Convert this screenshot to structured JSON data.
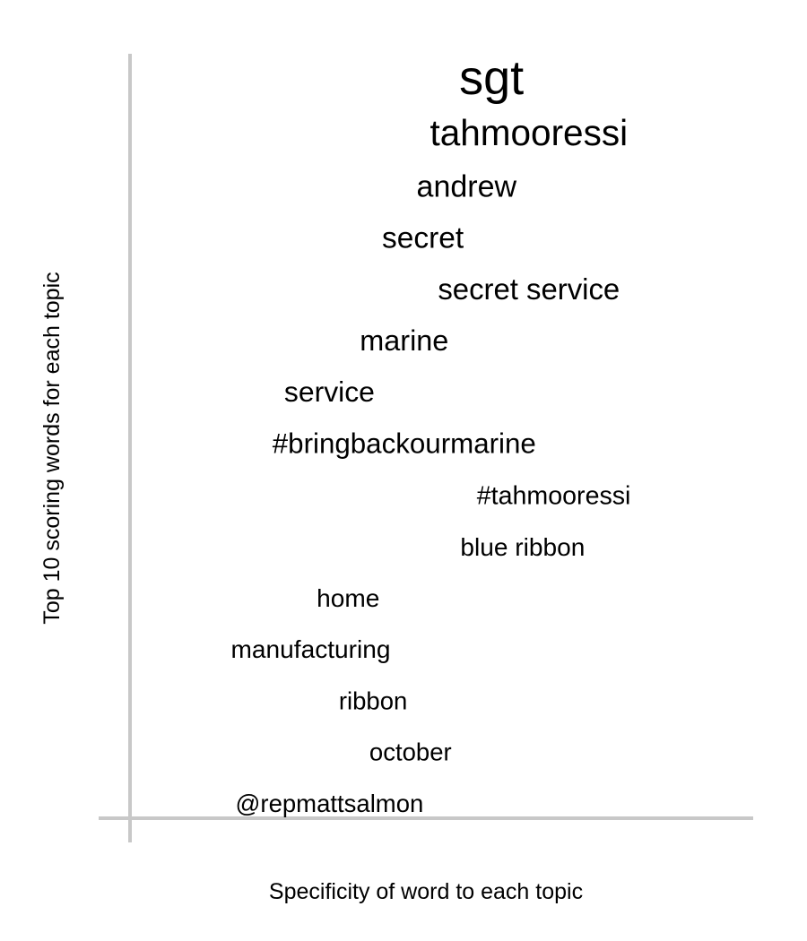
{
  "chart_data": {
    "type": "scatter",
    "title": "",
    "xlabel": "Specificity of word to each topic",
    "ylabel": "Top 10 scoring words for each topic",
    "grid": false,
    "legend": "none",
    "words": [
      {
        "word": "sgt",
        "specificity": 0.58,
        "weight": 1.0
      },
      {
        "word": "tahmooressi",
        "specificity": 0.64,
        "weight": 0.75
      },
      {
        "word": "andrew",
        "specificity": 0.54,
        "weight": 0.63
      },
      {
        "word": "secret",
        "specificity": 0.47,
        "weight": 0.62
      },
      {
        "word": "secret service",
        "specificity": 0.64,
        "weight": 0.61
      },
      {
        "word": "marine",
        "specificity": 0.44,
        "weight": 0.6
      },
      {
        "word": "service",
        "specificity": 0.32,
        "weight": 0.59
      },
      {
        "word": "#bringbackourmarine",
        "specificity": 0.44,
        "weight": 0.58
      },
      {
        "word": "#tahmooressi",
        "specificity": 0.68,
        "weight": 0.53
      },
      {
        "word": "blue ribbon",
        "specificity": 0.63,
        "weight": 0.52
      },
      {
        "word": "home",
        "specificity": 0.35,
        "weight": 0.52
      },
      {
        "word": "manufacturing",
        "specificity": 0.29,
        "weight": 0.52
      },
      {
        "word": "ribbon",
        "specificity": 0.39,
        "weight": 0.51
      },
      {
        "word": "october",
        "specificity": 0.45,
        "weight": 0.51
      },
      {
        "word": "@repmattsalmon",
        "specificity": 0.32,
        "weight": 0.51
      }
    ]
  }
}
